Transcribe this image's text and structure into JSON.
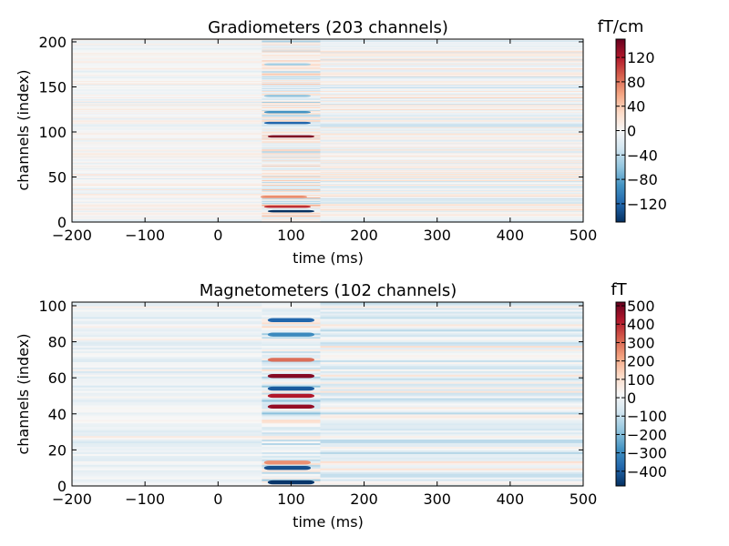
{
  "chart_data": [
    {
      "type": "heatmap",
      "title": "Gradiometers (203 channels)",
      "xlabel": "time (ms)",
      "ylabel": "channels (index)",
      "xlim": [
        -200,
        500
      ],
      "ylim": [
        0,
        203
      ],
      "xticks": [
        -200,
        -100,
        0,
        100,
        200,
        300,
        400,
        500
      ],
      "xtick_labels": [
        "−200",
        "−100",
        "0",
        "100",
        "200",
        "300",
        "400",
        "500"
      ],
      "yticks": [
        0,
        50,
        100,
        150,
        200
      ],
      "ytick_labels": [
        "0",
        "50",
        "100",
        "150",
        "200"
      ],
      "colormap": "RdBu_r",
      "colorbar": {
        "label": "fT/cm",
        "vmin": -150,
        "vmax": 150,
        "ticks": [
          -120,
          -80,
          -40,
          0,
          40,
          80,
          120
        ],
        "tick_labels": [
          "−120",
          "−80",
          "−40",
          "0",
          "40",
          "80",
          "120"
        ]
      },
      "n_channels": 203,
      "features": [
        {
          "t": 100,
          "ch": 12,
          "value": -150
        },
        {
          "t": 95,
          "ch": 17,
          "value": 110
        },
        {
          "t": 90,
          "ch": 28,
          "value": 70
        },
        {
          "t": 100,
          "ch": 95,
          "value": 140
        },
        {
          "t": 95,
          "ch": 110,
          "value": -120
        },
        {
          "t": 95,
          "ch": 122,
          "value": -90
        },
        {
          "t": 95,
          "ch": 140,
          "value": -60
        },
        {
          "t": 95,
          "ch": 175,
          "value": -50
        }
      ]
    },
    {
      "type": "heatmap",
      "title": "Magnetometers (102 channels)",
      "xlabel": "time (ms)",
      "ylabel": "channels (index)",
      "xlim": [
        -200,
        500
      ],
      "ylim": [
        0,
        102
      ],
      "xticks": [
        -200,
        -100,
        0,
        100,
        200,
        300,
        400,
        500
      ],
      "xtick_labels": [
        "−200",
        "−100",
        "0",
        "100",
        "200",
        "300",
        "400",
        "500"
      ],
      "yticks": [
        0,
        20,
        40,
        60,
        80,
        100
      ],
      "ytick_labels": [
        "0",
        "20",
        "40",
        "60",
        "80",
        "100"
      ],
      "colormap": "RdBu_r",
      "colorbar": {
        "label": "fT",
        "vmin": -480,
        "vmax": 520,
        "ticks": [
          -400,
          -300,
          -200,
          -100,
          0,
          100,
          200,
          300,
          400,
          500
        ],
        "tick_labels": [
          "−400",
          "−300",
          "−200",
          "−100",
          "0",
          "100",
          "200",
          "300",
          "400",
          "500"
        ]
      },
      "n_channels": 102,
      "features": [
        {
          "t": 100,
          "ch": 92,
          "value": -380
        },
        {
          "t": 100,
          "ch": 84,
          "value": -300
        },
        {
          "t": 100,
          "ch": 70,
          "value": 300
        },
        {
          "t": 100,
          "ch": 61,
          "value": 480
        },
        {
          "t": 100,
          "ch": 54,
          "value": -400
        },
        {
          "t": 100,
          "ch": 50,
          "value": 420
        },
        {
          "t": 100,
          "ch": 44,
          "value": 460
        },
        {
          "t": 95,
          "ch": 13,
          "value": 250
        },
        {
          "t": 95,
          "ch": 10,
          "value": -420
        },
        {
          "t": 100,
          "ch": 2,
          "value": -470
        }
      ]
    }
  ]
}
